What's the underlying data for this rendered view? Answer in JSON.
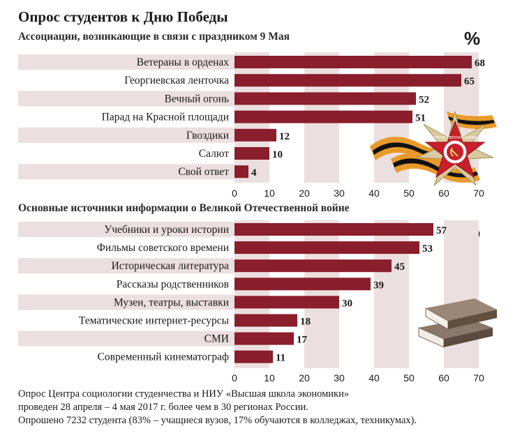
{
  "title": "Опрос студентов к Дню Победы",
  "unit_symbol": "%",
  "colors": {
    "bar": "#8a1e2c",
    "band": "#ecdfdf",
    "grid_band": "#ecdfdf",
    "text": "#1a1a1a"
  },
  "icons": {
    "top_decoration": "order-of-patriotic-war-with-st-george-ribbon-icon",
    "bottom_decoration": "stack-of-books-icon"
  },
  "medal_text": "ОТЕЧЕСТВЕННАЯ ВОЙНА",
  "chart_data": [
    {
      "type": "bar",
      "orientation": "horizontal",
      "title": "Ассоциации, возникающие в связи с праздником 9 Мая",
      "unit": "%",
      "categories": [
        "Ветераны в орденах",
        "Георгиевская ленточка",
        "Вечный огонь",
        "Парад на Красной площади",
        "Гвоздики",
        "Салют",
        "Свой ответ"
      ],
      "values": [
        68,
        65,
        52,
        51,
        12,
        10,
        4
      ],
      "xlim": [
        0,
        70
      ],
      "xticks": [
        0,
        10,
        20,
        30,
        40,
        50,
        60,
        70
      ],
      "grid": "alternating vertical bands"
    },
    {
      "type": "bar",
      "orientation": "horizontal",
      "title": "Основные источники информации о Великой Отечественной войне",
      "unit": "%",
      "categories": [
        "Учебники и уроки истории",
        "Фильмы советского времени",
        "Историческая литература",
        "Рассказы родственников",
        "Музеи, театры, выставки",
        "Тематические интернет-ресурсы",
        "СМИ",
        "Современный кинематограф"
      ],
      "values": [
        57,
        53,
        45,
        39,
        30,
        18,
        17,
        11
      ],
      "xlim": [
        0,
        70
      ],
      "xticks": [
        0,
        10,
        20,
        30,
        40,
        50,
        60,
        70
      ],
      "grid": "alternating vertical bands"
    }
  ],
  "footnote": [
    "Опрос Центра социологии студенчества и НИУ «Высшая школа экономики»",
    "проведен 28 апреля – 4 мая 2017 г. более чем в 30 регионах России.",
    "Опрошено 7232 студента (83% – учащиеся вузов, 17% обучаются в колледжах, техникумах)."
  ]
}
